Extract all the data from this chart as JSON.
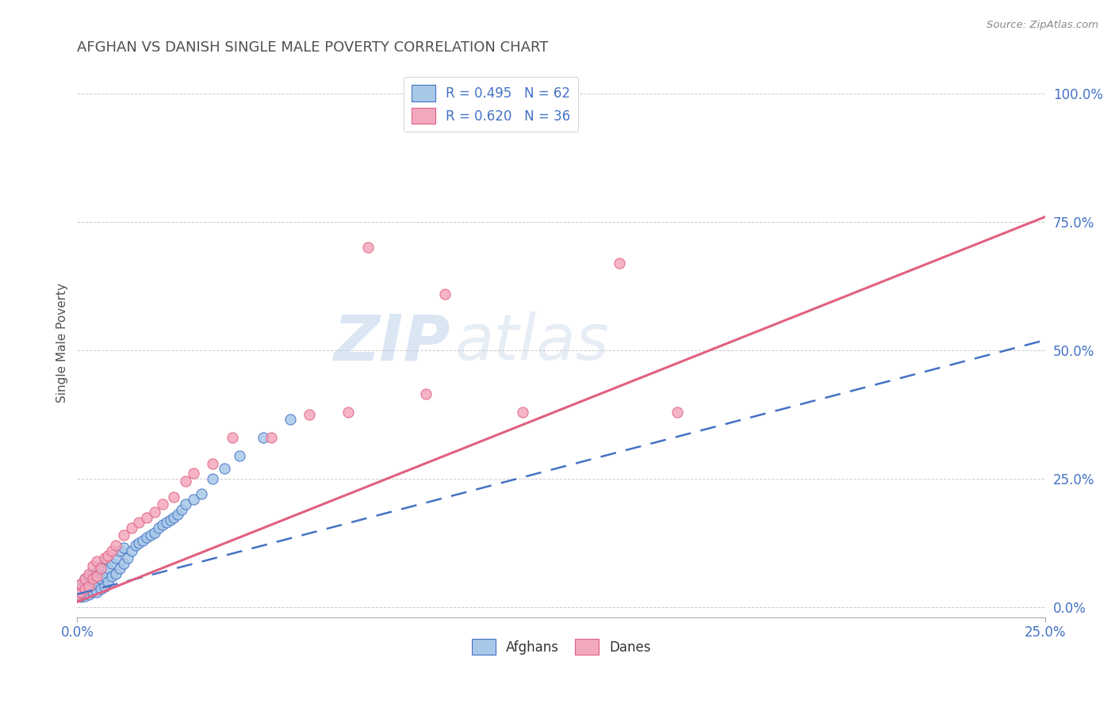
{
  "title": "AFGHAN VS DANISH SINGLE MALE POVERTY CORRELATION CHART",
  "source": "Source: ZipAtlas.com",
  "ylabel": "Single Male Poverty",
  "legend_afghan": "R = 0.495   N = 62",
  "legend_danish": "R = 0.620   N = 36",
  "legend_label1": "Afghans",
  "legend_label2": "Danes",
  "afghan_color": "#a8c8e8",
  "danish_color": "#f4a8be",
  "afghan_line_color": "#4472c4",
  "danish_line_color": "#e06080",
  "background_color": "#ffffff",
  "title_color": "#505050",
  "title_fontsize": 13,
  "watermark_color": "#c5d8ec",
  "xlim": [
    0.0,
    0.25
  ],
  "ylim": [
    -0.02,
    1.05
  ],
  "afghan_x": [
    0.0,
    0.0,
    0.001,
    0.001,
    0.001,
    0.001,
    0.001,
    0.002,
    0.002,
    0.002,
    0.002,
    0.002,
    0.003,
    0.003,
    0.003,
    0.003,
    0.004,
    0.004,
    0.004,
    0.004,
    0.005,
    0.005,
    0.005,
    0.006,
    0.006,
    0.006,
    0.007,
    0.007,
    0.007,
    0.008,
    0.008,
    0.009,
    0.009,
    0.01,
    0.01,
    0.011,
    0.011,
    0.012,
    0.012,
    0.013,
    0.014,
    0.015,
    0.016,
    0.017,
    0.018,
    0.019,
    0.02,
    0.021,
    0.022,
    0.023,
    0.024,
    0.025,
    0.026,
    0.027,
    0.028,
    0.03,
    0.032,
    0.035,
    0.038,
    0.042,
    0.048,
    0.055
  ],
  "afghan_y": [
    0.025,
    0.03,
    0.02,
    0.028,
    0.035,
    0.04,
    0.045,
    0.022,
    0.03,
    0.038,
    0.045,
    0.055,
    0.025,
    0.035,
    0.042,
    0.06,
    0.03,
    0.04,
    0.05,
    0.065,
    0.03,
    0.045,
    0.07,
    0.035,
    0.055,
    0.08,
    0.04,
    0.06,
    0.09,
    0.05,
    0.075,
    0.06,
    0.085,
    0.065,
    0.095,
    0.075,
    0.11,
    0.085,
    0.115,
    0.095,
    0.11,
    0.12,
    0.125,
    0.13,
    0.135,
    0.14,
    0.145,
    0.155,
    0.16,
    0.165,
    0.17,
    0.175,
    0.18,
    0.19,
    0.2,
    0.21,
    0.22,
    0.25,
    0.27,
    0.295,
    0.33,
    0.365
  ],
  "danish_x": [
    0.0,
    0.001,
    0.001,
    0.002,
    0.002,
    0.003,
    0.003,
    0.004,
    0.004,
    0.005,
    0.005,
    0.006,
    0.007,
    0.008,
    0.009,
    0.01,
    0.012,
    0.014,
    0.016,
    0.018,
    0.02,
    0.022,
    0.025,
    0.028,
    0.03,
    0.035,
    0.04,
    0.05,
    0.06,
    0.07,
    0.075,
    0.09,
    0.095,
    0.115,
    0.14,
    0.155
  ],
  "danish_y": [
    0.025,
    0.03,
    0.045,
    0.035,
    0.055,
    0.04,
    0.065,
    0.055,
    0.08,
    0.06,
    0.09,
    0.075,
    0.095,
    0.1,
    0.11,
    0.12,
    0.14,
    0.155,
    0.165,
    0.175,
    0.185,
    0.2,
    0.215,
    0.245,
    0.26,
    0.28,
    0.33,
    0.33,
    0.375,
    0.38,
    0.7,
    0.415,
    0.61,
    0.38,
    0.67,
    0.38
  ],
  "afghan_trend": [
    0.0,
    0.25,
    0.025,
    0.52
  ],
  "danish_trend": [
    0.0,
    0.25,
    0.01,
    0.76
  ],
  "ytick_vals": [
    0.0,
    0.25,
    0.5,
    0.75,
    1.0
  ],
  "ytick_labels": [
    "0.0%",
    "25.0%",
    "50.0%",
    "75.0%",
    "100.0%"
  ],
  "xtick_vals": [
    0.0,
    0.25
  ],
  "xtick_labels": [
    "0.0%",
    "25.0%"
  ]
}
